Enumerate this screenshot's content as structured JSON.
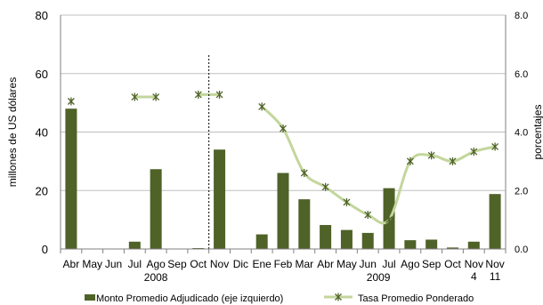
{
  "chart_data": {
    "type": "bar+line",
    "categories": [
      "Abr",
      "May",
      "Jun",
      "Jul",
      "Ago",
      "Sep",
      "Oct",
      "Nov",
      "Dic",
      "Ene",
      "Feb",
      "Mar",
      "Abr",
      "May",
      "Jun",
      "Jul",
      "Ago",
      "Sep",
      "Oct",
      "Nov\n4",
      "Nov\n11"
    ],
    "year_groups": [
      {
        "label": "2008",
        "start": 0,
        "end": 8
      },
      {
        "label": "2009",
        "start": 9,
        "end": 20
      }
    ],
    "series": [
      {
        "name": "Monto Promedio Adjudicado (eje izquierdo)",
        "type": "bar",
        "axis": "left",
        "color": "#4f6228",
        "values": [
          48,
          0,
          0,
          2.5,
          27.3,
          0,
          0.3,
          34,
          0,
          5,
          26,
          17,
          8.2,
          6.5,
          5.5,
          20.8,
          3,
          3.2,
          0.5,
          2.5,
          18.8
        ]
      },
      {
        "name": "Tasa Promedio Ponderado",
        "type": "line",
        "axis": "right",
        "color": "#c3d69b",
        "marker_color": "#4f6228",
        "values": [
          5.05,
          null,
          null,
          5.2,
          5.2,
          null,
          5.28,
          5.28,
          null,
          4.87,
          4.12,
          2.6,
          2.12,
          1.6,
          1.17,
          1.0,
          3.0,
          3.2,
          3.0,
          3.33,
          3.5
        ]
      }
    ],
    "ylabel": "millones de US dólares",
    "y2label": "porcentajes",
    "ylim": [
      0,
      80
    ],
    "y2lim": [
      0,
      8
    ],
    "yticks": [
      "0",
      "20",
      "40",
      "60",
      "80"
    ],
    "y2ticks": [
      "0.0",
      "2.0",
      "4.0",
      "6.0",
      "8.0"
    ],
    "vertical_dashed_line_between": [
      "Oct",
      "Nov\n4"
    ],
    "legend_position": "bottom"
  }
}
